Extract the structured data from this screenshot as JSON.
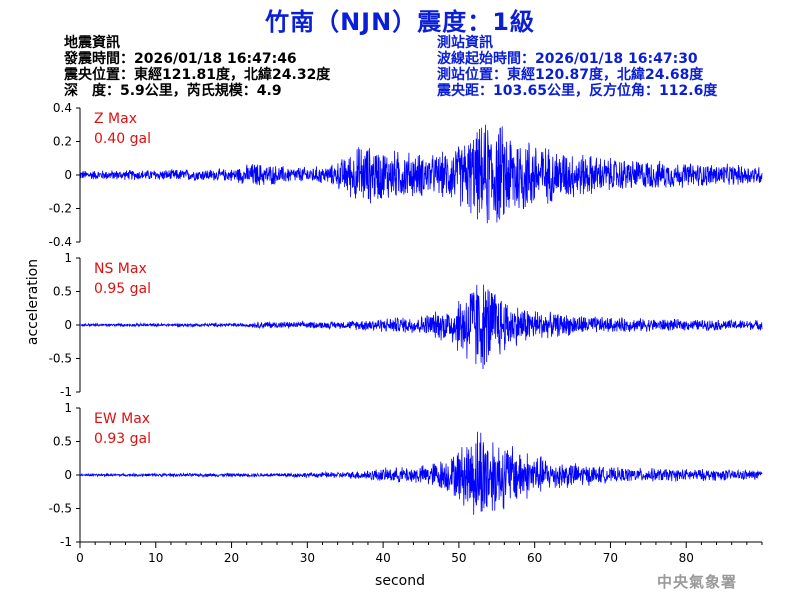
{
  "header": {
    "title": "竹南（NJN）震度：1級",
    "left_lines": [
      "地震資訊",
      "發震時間：2026/01/18 16:47:46",
      "震央位置：東經121.81度，北緯24.32度",
      "深　度：5.9公里，芮氏規模：4.9"
    ],
    "right_lines": [
      "測站資訊",
      "波線起始時間：2026/01/18 16:47:30",
      "測站位置：東經120.87度，北緯24.68度",
      "震央距：103.65公里，反方位角：112.6度"
    ]
  },
  "footer": {
    "org": "中央氣象署"
  },
  "colors": {
    "title": "#0a1ed6",
    "trace": "#0000ff",
    "max_label": "#e01010",
    "right_info": "#0a1ed6"
  },
  "chart_data": {
    "type": "line",
    "xlabel": "second",
    "ylabel": "acceleration",
    "xlim": [
      0,
      90
    ],
    "xticks": [
      0,
      10,
      20,
      30,
      40,
      50,
      60,
      70,
      80
    ],
    "grid": false,
    "panels": [
      {
        "name": "Z",
        "max_title": "Z Max",
        "max_value": "0.40 gal",
        "ylim": [
          -0.4,
          0.4
        ],
        "yticks": [
          -0.4,
          -0.2,
          0,
          0.2,
          0.4
        ],
        "ytick_labels": [
          "-0.4",
          "-0.2",
          "0",
          "0.2",
          "0.4"
        ],
        "envelope": [
          {
            "t": 0,
            "a": 0.03
          },
          {
            "t": 20,
            "a": 0.04
          },
          {
            "t": 23,
            "a": 0.08
          },
          {
            "t": 28,
            "a": 0.05
          },
          {
            "t": 33,
            "a": 0.06
          },
          {
            "t": 35,
            "a": 0.12
          },
          {
            "t": 37,
            "a": 0.2
          },
          {
            "t": 40,
            "a": 0.17
          },
          {
            "t": 47,
            "a": 0.13
          },
          {
            "t": 50,
            "a": 0.2
          },
          {
            "t": 54,
            "a": 0.36
          },
          {
            "t": 57,
            "a": 0.3
          },
          {
            "t": 62,
            "a": 0.18
          },
          {
            "t": 70,
            "a": 0.11
          },
          {
            "t": 80,
            "a": 0.08
          },
          {
            "t": 90,
            "a": 0.06
          }
        ]
      },
      {
        "name": "NS",
        "max_title": "NS Max",
        "max_value": "0.95 gal",
        "ylim": [
          -1,
          1
        ],
        "yticks": [
          -1,
          -0.5,
          0,
          0.5,
          1
        ],
        "ytick_labels": [
          "-1",
          "-0.5",
          "0",
          "0.5",
          "1"
        ],
        "envelope": [
          {
            "t": 0,
            "a": 0.02
          },
          {
            "t": 22,
            "a": 0.03
          },
          {
            "t": 24,
            "a": 0.06
          },
          {
            "t": 28,
            "a": 0.05
          },
          {
            "t": 35,
            "a": 0.06
          },
          {
            "t": 38,
            "a": 0.1
          },
          {
            "t": 45,
            "a": 0.15
          },
          {
            "t": 49,
            "a": 0.3
          },
          {
            "t": 52,
            "a": 0.8
          },
          {
            "t": 54,
            "a": 0.7
          },
          {
            "t": 57,
            "a": 0.35
          },
          {
            "t": 62,
            "a": 0.2
          },
          {
            "t": 70,
            "a": 0.12
          },
          {
            "t": 80,
            "a": 0.09
          },
          {
            "t": 90,
            "a": 0.08
          }
        ]
      },
      {
        "name": "EW",
        "max_title": "EW Max",
        "max_value": "0.93 gal",
        "ylim": [
          -1,
          1
        ],
        "yticks": [
          -1,
          -0.5,
          0,
          0.5,
          1
        ],
        "ytick_labels": [
          "-1",
          "-0.5",
          "0",
          "0.5",
          "1"
        ],
        "envelope": [
          {
            "t": 0,
            "a": 0.02
          },
          {
            "t": 25,
            "a": 0.03
          },
          {
            "t": 35,
            "a": 0.05
          },
          {
            "t": 39,
            "a": 0.1
          },
          {
            "t": 45,
            "a": 0.15
          },
          {
            "t": 49,
            "a": 0.3
          },
          {
            "t": 53,
            "a": 0.85
          },
          {
            "t": 55,
            "a": 0.6
          },
          {
            "t": 58,
            "a": 0.45
          },
          {
            "t": 62,
            "a": 0.25
          },
          {
            "t": 70,
            "a": 0.12
          },
          {
            "t": 80,
            "a": 0.1
          },
          {
            "t": 90,
            "a": 0.08
          }
        ]
      }
    ]
  }
}
